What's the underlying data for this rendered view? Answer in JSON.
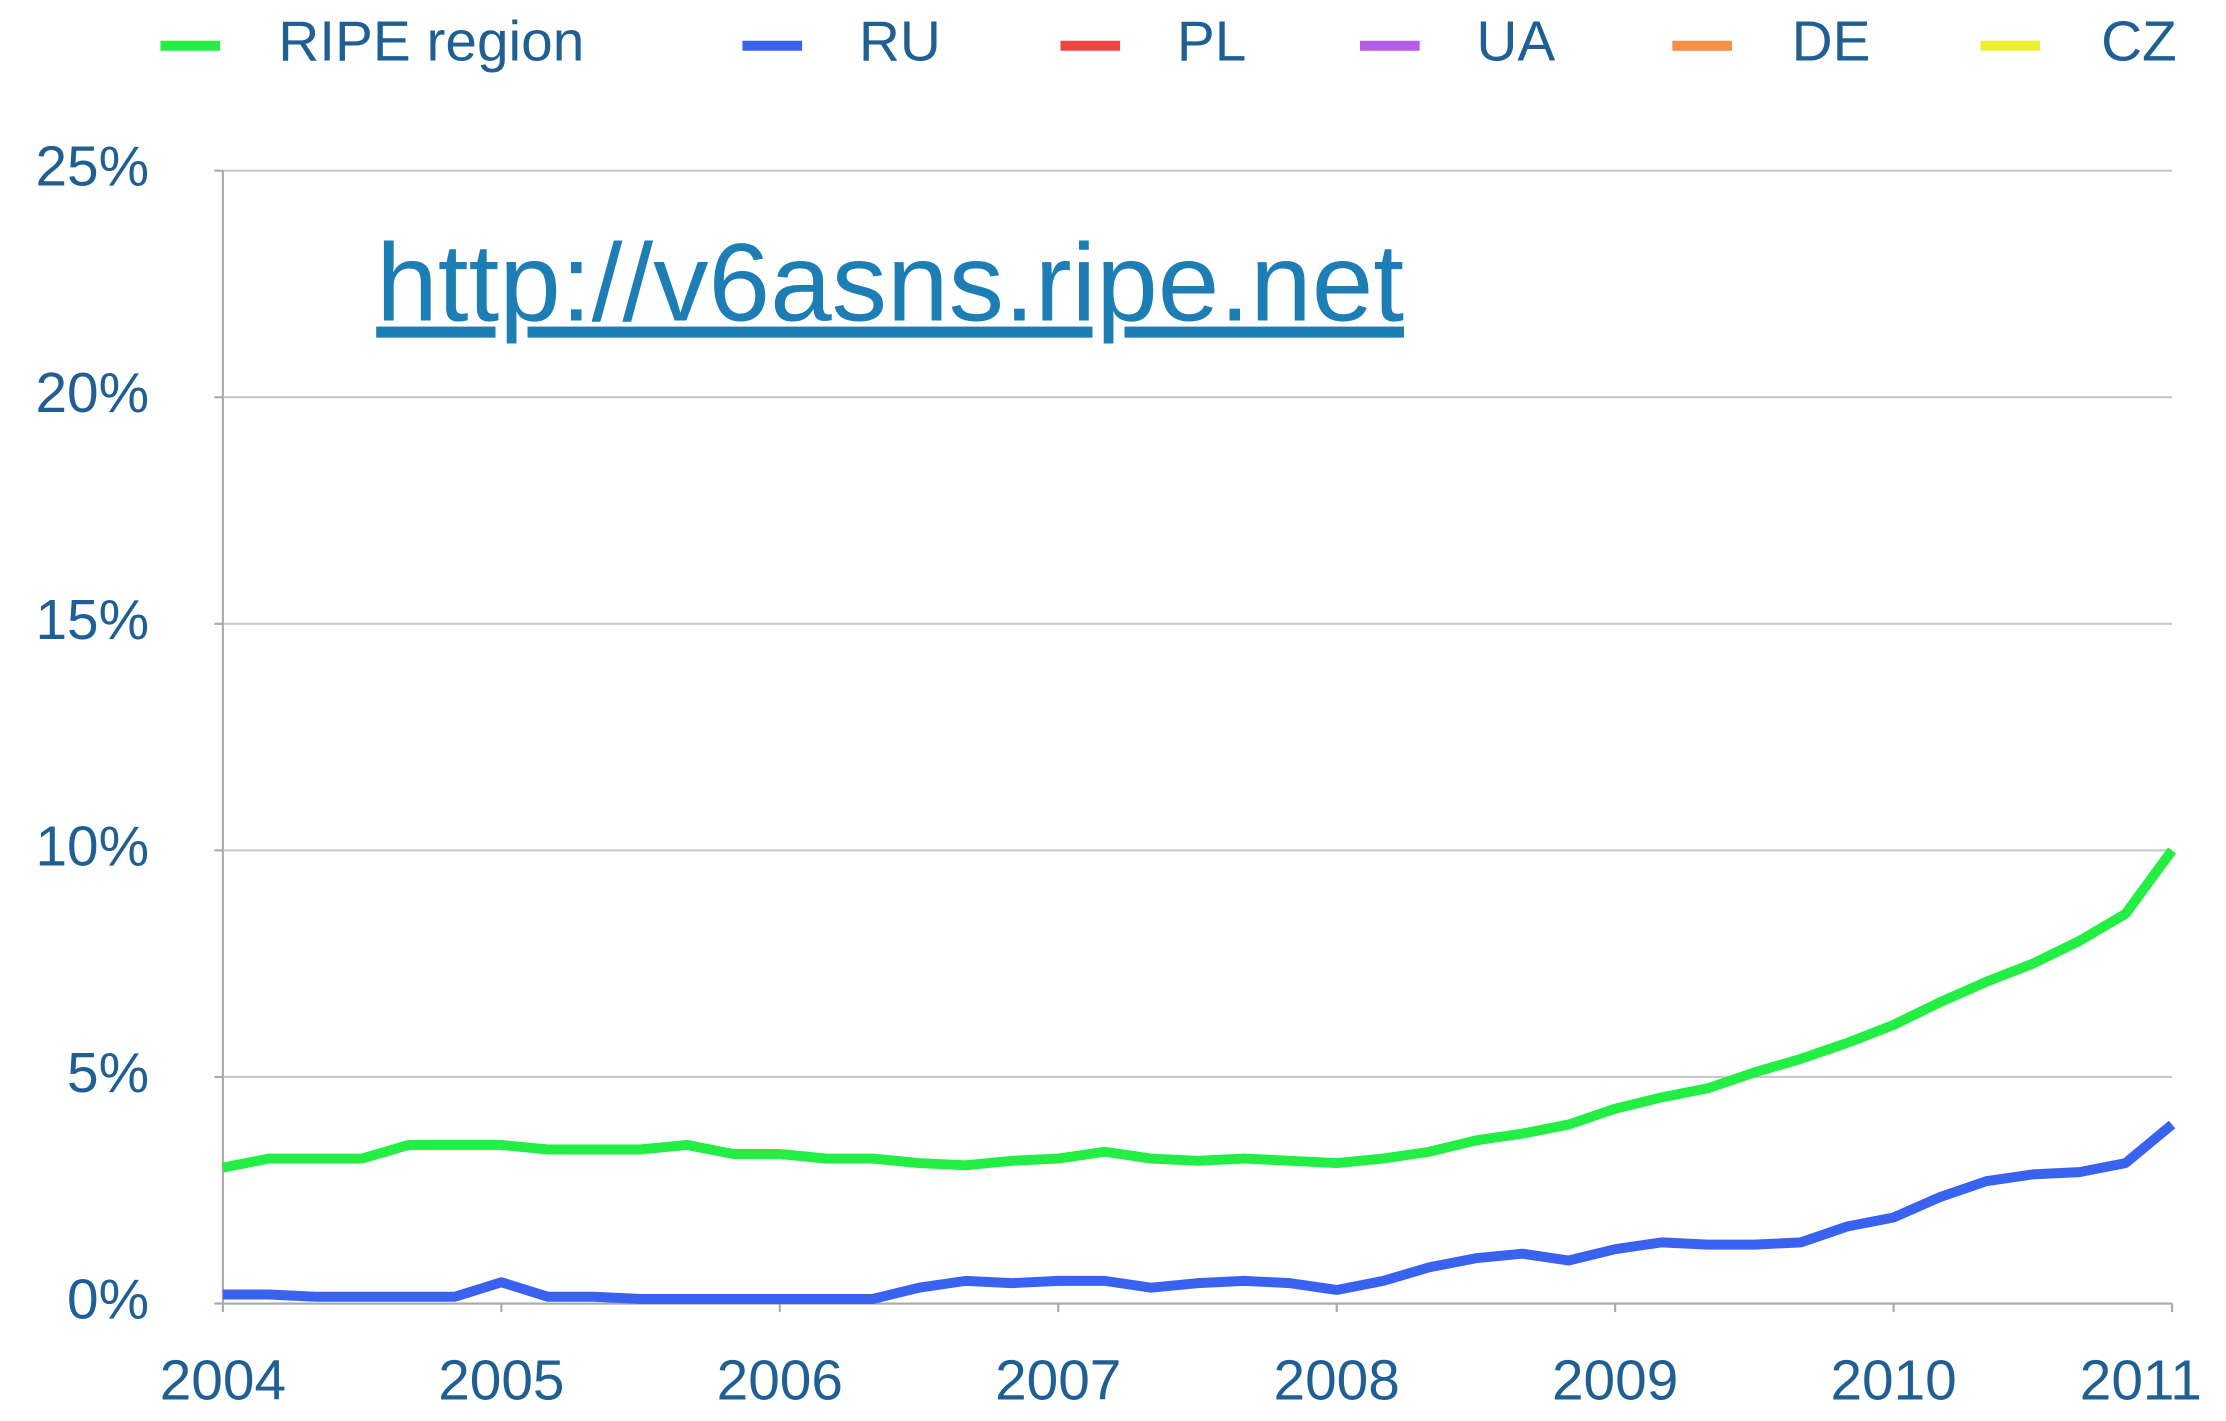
{
  "chart_data": {
    "type": "line",
    "annotation": "http://v6asns.ripe.net",
    "x": [
      2004,
      2004.167,
      2004.333,
      2004.5,
      2004.667,
      2004.833,
      2005,
      2005.167,
      2005.333,
      2005.5,
      2005.667,
      2005.833,
      2006,
      2006.167,
      2006.333,
      2006.5,
      2006.667,
      2006.833,
      2007,
      2007.167,
      2007.333,
      2007.5,
      2007.667,
      2007.833,
      2008,
      2008.167,
      2008.333,
      2008.5,
      2008.667,
      2008.833,
      2009,
      2009.167,
      2009.333,
      2009.5,
      2009.667,
      2009.833,
      2010,
      2010.167,
      2010.333,
      2010.5,
      2010.667,
      2010.833,
      2011
    ],
    "series": [
      {
        "name": "RIPE region",
        "color": "#22ee44",
        "values": [
          3.0,
          3.2,
          3.2,
          3.2,
          3.5,
          3.5,
          3.5,
          3.4,
          3.4,
          3.4,
          3.5,
          3.3,
          3.3,
          3.2,
          3.2,
          3.1,
          3.05,
          3.15,
          3.2,
          3.35,
          3.2,
          3.15,
          3.2,
          3.15,
          3.1,
          3.2,
          3.35,
          3.6,
          3.75,
          3.95,
          4.3,
          4.55,
          4.75,
          5.1,
          5.4,
          5.75,
          6.15,
          6.65,
          7.1,
          7.5,
          8.0,
          8.6,
          10.0
        ]
      },
      {
        "name": "RU",
        "color": "#3a62f0",
        "values": [
          0.2,
          0.2,
          0.15,
          0.15,
          0.15,
          0.15,
          0.47,
          0.15,
          0.15,
          0.1,
          0.1,
          0.1,
          0.1,
          0.1,
          0.1,
          0.35,
          0.5,
          0.45,
          0.5,
          0.5,
          0.35,
          0.45,
          0.5,
          0.45,
          0.3,
          0.5,
          0.8,
          1.0,
          1.1,
          0.95,
          1.2,
          1.35,
          1.3,
          1.3,
          1.35,
          1.7,
          1.9,
          2.35,
          2.7,
          2.85,
          2.9,
          3.1,
          3.95
        ]
      },
      {
        "name": "PL",
        "color": "#f04545",
        "values": [
          null,
          null,
          null,
          null,
          null,
          null,
          null,
          null,
          null,
          null,
          null,
          null,
          null,
          null,
          null,
          null,
          null,
          null,
          null,
          null,
          null,
          null,
          null,
          null,
          null,
          null,
          null,
          null,
          null,
          null,
          null,
          null,
          null,
          null,
          null,
          null,
          null,
          null,
          null,
          null,
          null,
          null,
          null
        ]
      },
      {
        "name": "UA",
        "color": "#b45ee8",
        "values": [
          null,
          null,
          null,
          null,
          null,
          null,
          null,
          null,
          null,
          null,
          null,
          null,
          null,
          null,
          null,
          null,
          null,
          null,
          null,
          null,
          null,
          null,
          null,
          null,
          null,
          null,
          null,
          null,
          null,
          null,
          null,
          null,
          null,
          null,
          null,
          null,
          null,
          null,
          null,
          null,
          null,
          null,
          null
        ]
      },
      {
        "name": "DE",
        "color": "#f4904a",
        "values": [
          null,
          null,
          null,
          null,
          null,
          null,
          null,
          null,
          null,
          null,
          null,
          null,
          null,
          null,
          null,
          null,
          null,
          null,
          null,
          null,
          null,
          null,
          null,
          null,
          null,
          null,
          null,
          null,
          null,
          null,
          null,
          null,
          null,
          null,
          null,
          null,
          null,
          null,
          null,
          null,
          null,
          null,
          null
        ]
      },
      {
        "name": "CZ",
        "color": "#eeee30",
        "values": [
          null,
          null,
          null,
          null,
          null,
          null,
          null,
          null,
          null,
          null,
          null,
          null,
          null,
          null,
          null,
          null,
          null,
          null,
          null,
          null,
          null,
          null,
          null,
          null,
          null,
          null,
          null,
          null,
          null,
          null,
          null,
          null,
          null,
          null,
          null,
          null,
          null,
          null,
          null,
          null,
          null,
          null,
          null
        ]
      }
    ],
    "xlim": [
      2004,
      2011
    ],
    "xticks": [
      2004,
      2005,
      2006,
      2007,
      2008,
      2009,
      2010,
      2011
    ],
    "ylim": [
      0,
      25
    ],
    "yticks": [
      {
        "value": 0,
        "label": "0%"
      },
      {
        "value": 5,
        "label": "5%"
      },
      {
        "value": 10,
        "label": "10%"
      },
      {
        "value": 15,
        "label": "15%"
      },
      {
        "value": 20,
        "label": "20%"
      },
      {
        "value": 25,
        "label": "25%"
      }
    ],
    "grid": true,
    "legend": "top"
  }
}
